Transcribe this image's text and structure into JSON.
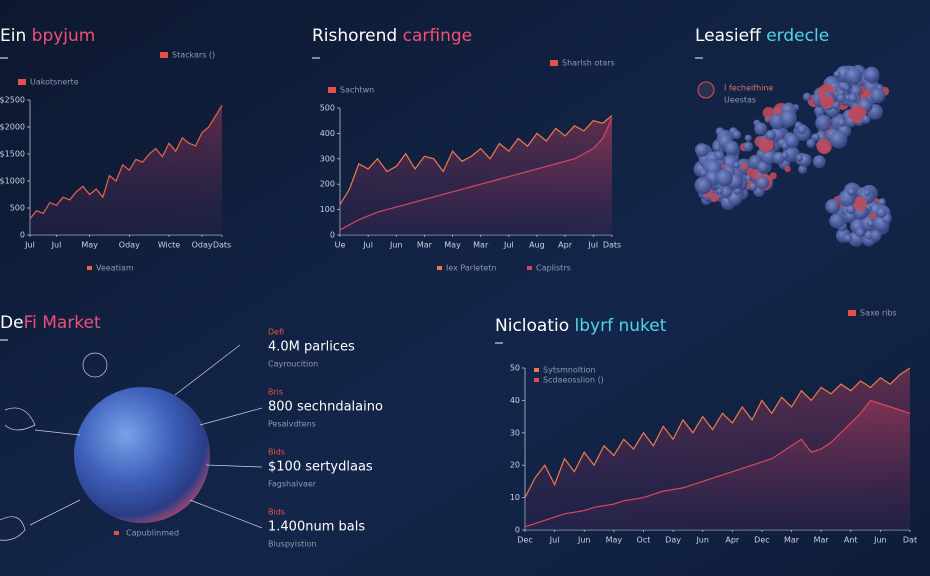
{
  "chart_data": [
    {
      "type": "line",
      "title": "Ein",
      "title_accent": "bpyjum",
      "annotations": [
        "Stackars ()",
        "Uakotsnerte"
      ],
      "legend": "bottom",
      "xlim": [
        0,
        29
      ],
      "xticks": [
        {
          "value": 0,
          "label": "Jul"
        },
        {
          "value": 4,
          "label": "Jul"
        },
        {
          "value": 9,
          "label": "May"
        },
        {
          "value": 15,
          "label": "Oday"
        },
        {
          "value": 21,
          "label": "Wicte"
        },
        {
          "value": 26,
          "label": "Oday"
        },
        {
          "value": 29,
          "label": "Dats"
        }
      ],
      "ylim": [
        0,
        2500
      ],
      "yticks": [
        0,
        500,
        {
          "value": 1000,
          "label": "$1000"
        },
        {
          "value": 1500,
          "label": "$1500"
        },
        {
          "value": 2000,
          "label": "$2000"
        },
        {
          "value": 2500,
          "label": "$2500"
        }
      ],
      "series": [
        {
          "name": "Veeatiam",
          "color": "#e8644c",
          "values": [
            300,
            450,
            400,
            600,
            550,
            700,
            650,
            800,
            900,
            750,
            850,
            700,
            1100,
            1000,
            1300,
            1200,
            1400,
            1350,
            1500,
            1600,
            1450,
            1700,
            1550,
            1800,
            1700,
            1650,
            1900,
            2000,
            2200,
            2400
          ]
        }
      ]
    },
    {
      "type": "line",
      "title": "Rishorend",
      "title_accent": "carfinge",
      "annotations": [
        "Sharlsh otars",
        "Sachtwn"
      ],
      "legend": "bottom",
      "xlim": [
        0,
        29
      ],
      "xticks": [
        {
          "value": 0,
          "label": "Ue"
        },
        {
          "value": 3,
          "label": "Jul"
        },
        {
          "value": 6,
          "label": "Jun"
        },
        {
          "value": 9,
          "label": "Mar"
        },
        {
          "value": 12,
          "label": "May"
        },
        {
          "value": 15,
          "label": "Mar"
        },
        {
          "value": 18,
          "label": "Jul"
        },
        {
          "value": 21,
          "label": "Aug"
        },
        {
          "value": 24,
          "label": "Apr"
        },
        {
          "value": 27,
          "label": "Jul"
        },
        {
          "value": 29,
          "label": "Dats"
        }
      ],
      "ylim": [
        0,
        500
      ],
      "yticks": [
        0,
        100,
        200,
        300,
        400,
        500
      ],
      "series": [
        {
          "name": "Iex Parletetn",
          "color": "#ef7a4e",
          "values": [
            120,
            180,
            280,
            260,
            300,
            250,
            270,
            320,
            260,
            310,
            300,
            250,
            330,
            290,
            310,
            340,
            300,
            360,
            330,
            380,
            350,
            400,
            370,
            420,
            390,
            430,
            410,
            450,
            440,
            470
          ]
        },
        {
          "name": "Caplistrs",
          "color": "#d2466a",
          "values": [
            20,
            40,
            60,
            75,
            90,
            100,
            110,
            120,
            130,
            140,
            150,
            160,
            170,
            180,
            190,
            200,
            210,
            220,
            230,
            240,
            250,
            260,
            270,
            280,
            290,
            300,
            320,
            340,
            380,
            460
          ]
        }
      ]
    },
    {
      "type": "line",
      "title": "Nicloatio",
      "title_accent": "lbyrf nuket",
      "annotations": [
        "Saxe ribs"
      ],
      "legend": "top-left",
      "xlim": [
        0,
        39
      ],
      "xticks": [
        {
          "value": 0,
          "label": "Dec"
        },
        {
          "value": 3,
          "label": "Jul"
        },
        {
          "value": 6,
          "label": "Jun"
        },
        {
          "value": 9,
          "label": "May"
        },
        {
          "value": 12,
          "label": "Oct"
        },
        {
          "value": 15,
          "label": "Day"
        },
        {
          "value": 18,
          "label": "Jun"
        },
        {
          "value": 21,
          "label": "Apr"
        },
        {
          "value": 24,
          "label": "Dec"
        },
        {
          "value": 27,
          "label": "Mar"
        },
        {
          "value": 30,
          "label": "Mar"
        },
        {
          "value": 33,
          "label": "Ant"
        },
        {
          "value": 36,
          "label": "Jun"
        },
        {
          "value": 39,
          "label": "Dat"
        }
      ],
      "ylim": [
        0,
        50
      ],
      "yticks": [
        0,
        10,
        20,
        30,
        40,
        50
      ],
      "series": [
        {
          "name": "Sytsmnoltion",
          "color": "#ee7a4c",
          "values": [
            10,
            16,
            20,
            14,
            22,
            18,
            24,
            20,
            26,
            23,
            28,
            25,
            30,
            26,
            32,
            28,
            34,
            30,
            35,
            31,
            36,
            33,
            38,
            34,
            40,
            36,
            41,
            38,
            43,
            40,
            44,
            42,
            45,
            43,
            46,
            44,
            47,
            45,
            48,
            50
          ]
        },
        {
          "name": "Scdaeosslion ()",
          "color": "#d9485a",
          "values": [
            1,
            2,
            3,
            4,
            5,
            5.5,
            6,
            7,
            7.5,
            8,
            9,
            9.5,
            10,
            11,
            12,
            12.5,
            13,
            14,
            15,
            16,
            17,
            18,
            19,
            20,
            21,
            22,
            24,
            26,
            28,
            24,
            25,
            27,
            30,
            33,
            36,
            40,
            39,
            38,
            37,
            36
          ]
        }
      ]
    }
  ],
  "defi": {
    "title": "De",
    "title_accent": "Fi Market",
    "callouts": [
      {
        "tag": "Defi",
        "value": "4.0M parlices",
        "caption": "Cayroucition"
      },
      {
        "tag": "Bris",
        "value": "800 sechndalaino",
        "caption": "Pesalvdtens"
      },
      {
        "tag": "Bids",
        "value": "$100 sertydlaas",
        "caption": "Fagshalvaer"
      },
      {
        "tag": "Bids",
        "value": "1.400num bals",
        "caption": "Biuspyistion"
      }
    ],
    "legend": "Capublinmed"
  },
  "molecule": {
    "title": "Leasieff",
    "title_accent": "erdecle",
    "label": "I fecheifhine",
    "sublabel": "Ueestas"
  }
}
